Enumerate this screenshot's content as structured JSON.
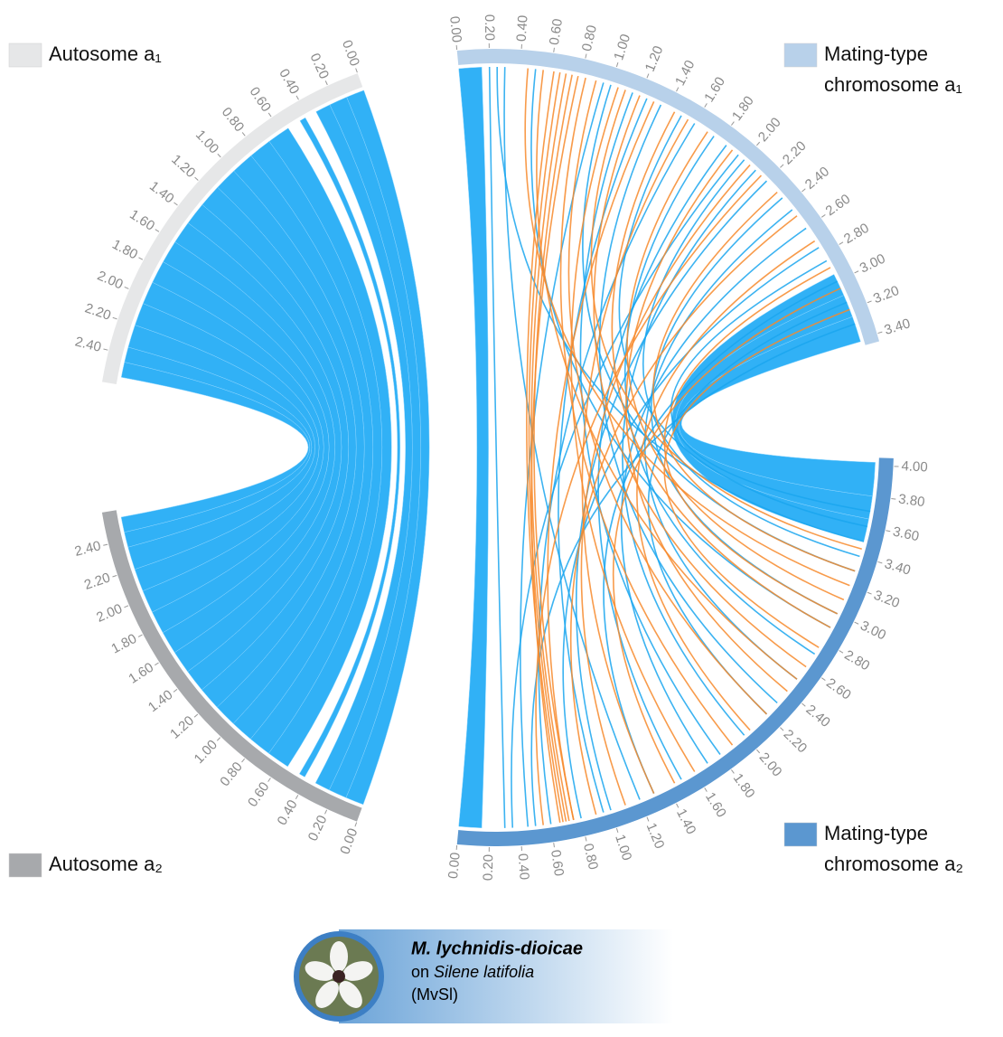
{
  "chart_data": {
    "type": "chord",
    "chromosomes": [
      {
        "name": [
          "Autosome a₁"
        ],
        "color": "#e6e7e8",
        "xlim": [
          0,
          2.6
        ],
        "xticks": [
          {
            "value": 0,
            "label": "0.00"
          },
          {
            "value": 0.2,
            "label": "0.20"
          },
          {
            "value": 0.4,
            "label": "0.40"
          },
          {
            "value": 0.6,
            "label": "0.60"
          },
          {
            "value": 0.8,
            "label": "0.80"
          },
          {
            "value": 1,
            "label": "1.00"
          },
          {
            "value": 1.2,
            "label": "1.20"
          },
          {
            "value": 1.4,
            "label": "1.40"
          },
          {
            "value": 1.6,
            "label": "1.60"
          },
          {
            "value": 1.8,
            "label": "1.80"
          },
          {
            "value": 2,
            "label": "2.00"
          },
          {
            "value": 2.2,
            "label": "2.20"
          },
          {
            "value": 2.4,
            "label": "2.40"
          }
        ]
      },
      {
        "name": [
          "Autosome a₂"
        ],
        "color": "#a7a9ac",
        "xlim": [
          0,
          2.6
        ],
        "xticks": [
          {
            "value": 0,
            "label": "0.00"
          },
          {
            "value": 0.2,
            "label": "0.20"
          },
          {
            "value": 0.4,
            "label": "0.40"
          },
          {
            "value": 0.6,
            "label": "0.60"
          },
          {
            "value": 0.8,
            "label": "0.80"
          },
          {
            "value": 1,
            "label": "1.00"
          },
          {
            "value": 1.2,
            "label": "1.20"
          },
          {
            "value": 1.4,
            "label": "1.40"
          },
          {
            "value": 1.6,
            "label": "1.60"
          },
          {
            "value": 1.8,
            "label": "1.80"
          },
          {
            "value": 2,
            "label": "2.00"
          },
          {
            "value": 2.2,
            "label": "2.20"
          },
          {
            "value": 2.4,
            "label": "2.40"
          }
        ]
      },
      {
        "name": [
          "Mating-type",
          "chromosome a₁"
        ],
        "color": "#b8d1ea",
        "xlim": [
          0,
          3.45
        ],
        "xticks": [
          {
            "value": 0,
            "label": "0.00"
          },
          {
            "value": 0.2,
            "label": "0.20"
          },
          {
            "value": 0.4,
            "label": "0.40"
          },
          {
            "value": 0.6,
            "label": "0.60"
          },
          {
            "value": 0.8,
            "label": "0.80"
          },
          {
            "value": 1,
            "label": "1.00"
          },
          {
            "value": 1.2,
            "label": "1.20"
          },
          {
            "value": 1.4,
            "label": "1.40"
          },
          {
            "value": 1.6,
            "label": "1.60"
          },
          {
            "value": 1.8,
            "label": "1.80"
          },
          {
            "value": 2,
            "label": "2.00"
          },
          {
            "value": 2.2,
            "label": "2.20"
          },
          {
            "value": 2.4,
            "label": "2.40"
          },
          {
            "value": 2.6,
            "label": "2.60"
          },
          {
            "value": 2.8,
            "label": "2.80"
          },
          {
            "value": 3,
            "label": "3.00"
          },
          {
            "value": 3.2,
            "label": "3.20"
          },
          {
            "value": 3.4,
            "label": "3.40"
          }
        ]
      },
      {
        "name": [
          "Mating-type",
          "chromosome a₂"
        ],
        "color": "#5b97d0",
        "xlim": [
          0,
          4.05
        ],
        "xticks": [
          {
            "value": 0,
            "label": "0.00"
          },
          {
            "value": 0.2,
            "label": "0.20"
          },
          {
            "value": 0.4,
            "label": "0.40"
          },
          {
            "value": 0.6,
            "label": "0.60"
          },
          {
            "value": 0.8,
            "label": "0.80"
          },
          {
            "value": 1,
            "label": "1.00"
          },
          {
            "value": 1.2,
            "label": "1.20"
          },
          {
            "value": 1.4,
            "label": "1.40"
          },
          {
            "value": 1.6,
            "label": "1.60"
          },
          {
            "value": 1.8,
            "label": "1.80"
          },
          {
            "value": 2,
            "label": "2.00"
          },
          {
            "value": 2.2,
            "label": "2.20"
          },
          {
            "value": 2.4,
            "label": "2.40"
          },
          {
            "value": 2.6,
            "label": "2.60"
          },
          {
            "value": 2.8,
            "label": "2.80"
          },
          {
            "value": 3,
            "label": "3.00"
          },
          {
            "value": 3.2,
            "label": "3.20"
          },
          {
            "value": 3.4,
            "label": "3.40"
          },
          {
            "value": 3.6,
            "label": "3.60"
          },
          {
            "value": 3.8,
            "label": "3.80"
          },
          {
            "value": 4,
            "label": "4.00"
          }
        ]
      }
    ],
    "autosome_ribbons": {
      "color": "#1ba9f5",
      "links": [
        [
          0,
          0.12,
          0,
          0.12
        ],
        [
          0.12,
          0.24,
          0.12,
          0.24
        ],
        [
          0.24,
          0.34,
          0.24,
          0.34
        ],
        [
          0.42,
          0.46,
          0.42,
          0.46
        ],
        [
          0.55,
          0.7,
          0.55,
          0.7
        ],
        [
          0.7,
          0.85,
          0.7,
          0.85
        ],
        [
          0.85,
          1,
          0.85,
          1
        ],
        [
          1,
          1.15,
          1,
          1.15
        ],
        [
          1.15,
          1.3,
          1.15,
          1.3
        ],
        [
          1.3,
          1.45,
          1.3,
          1.45
        ],
        [
          1.45,
          1.6,
          1.45,
          1.6
        ],
        [
          1.6,
          1.75,
          1.6,
          1.75
        ],
        [
          1.75,
          1.9,
          1.75,
          1.9
        ],
        [
          1.9,
          2.05,
          1.9,
          2.05
        ],
        [
          2.05,
          2.2,
          2.05,
          2.2
        ],
        [
          2.2,
          2.35,
          2.2,
          2.35
        ],
        [
          2.35,
          2.45,
          2.35,
          2.45
        ],
        [
          2.45,
          2.55,
          2.45,
          2.55
        ]
      ]
    },
    "mating_type_ribbons": {
      "color": "#1ba9f5",
      "links": [
        [
          0,
          0.15,
          0,
          0.15
        ],
        [
          2.95,
          3.1,
          3.5,
          3.65
        ],
        [
          3.1,
          3.25,
          3.65,
          3.8
        ],
        [
          3.25,
          3.42,
          3.8,
          4.02
        ]
      ]
    },
    "mating_type_lines": [
      {
        "color": "#1aa6ef",
        "links": [
          [
            0.3,
            1.2
          ],
          [
            0.5,
            2.9
          ],
          [
            0.95,
            0.45
          ],
          [
            1,
            3.3
          ],
          [
            1.15,
            1.8
          ],
          [
            1.25,
            0.95
          ],
          [
            1.35,
            2.3
          ],
          [
            1.5,
            3.6
          ],
          [
            1.6,
            0.6
          ],
          [
            1.75,
            2.7
          ],
          [
            1.85,
            1.5
          ],
          [
            2,
            3.4
          ],
          [
            2.1,
            2
          ],
          [
            2.2,
            1
          ],
          [
            2.35,
            3
          ],
          [
            2.45,
            2.5
          ],
          [
            2.6,
            1.7
          ],
          [
            2.75,
            0.8
          ],
          [
            2.85,
            3.7
          ],
          [
            3,
            1.3
          ],
          [
            3.15,
            2.2
          ],
          [
            3.3,
            0.5
          ],
          [
            0.2,
            0.3
          ],
          [
            0.25,
            3.5
          ],
          [
            1.95,
            0.35
          ]
        ]
      },
      {
        "color": "#f7892b",
        "links": [
          [
            0.62,
            0.68
          ],
          [
            0.66,
            0.7
          ],
          [
            0.7,
            0.72
          ],
          [
            0.74,
            0.75
          ],
          [
            0.78,
            0.66
          ],
          [
            0.83,
            1.9
          ],
          [
            0.9,
            2.2
          ],
          [
            1.05,
            1.6
          ],
          [
            1.2,
            2.6
          ],
          [
            1.3,
            0.75
          ],
          [
            1.45,
            2.9
          ],
          [
            1.55,
            1.3
          ],
          [
            1.7,
            3.1
          ],
          [
            1.9,
            2.4
          ],
          [
            2.05,
            1.1
          ],
          [
            2.3,
            3.3
          ],
          [
            2.5,
            0.9
          ],
          [
            2.7,
            2.05
          ],
          [
            2.9,
            3
          ],
          [
            3.05,
            1.45
          ],
          [
            3.2,
            2.75
          ],
          [
            0.45,
            3.2
          ],
          [
            0.55,
            2.5
          ],
          [
            1.1,
            3.45
          ],
          [
            2.15,
            0.55
          ]
        ]
      }
    ],
    "caption": {
      "species": "M. lychnidis-dioicae",
      "host_prefix": "on",
      "host": "Silene latifolia",
      "code": "(MvSl)"
    }
  }
}
